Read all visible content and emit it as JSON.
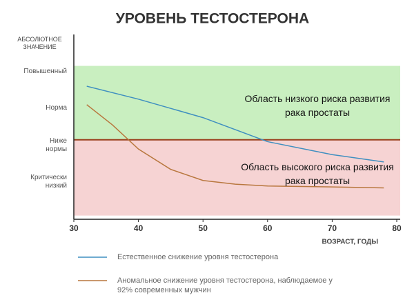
{
  "chart_data": {
    "type": "line",
    "title": "УРОВЕНЬ ТЕСТОСТЕРОНА",
    "y_label": "АБСОЛЮТНОЕ ЗНАЧЕНИЕ",
    "x_label": "ВОЗРАСТ, ГОДЫ",
    "xlim": [
      30,
      80
    ],
    "xticks": [
      30,
      40,
      50,
      60,
      70,
      80
    ],
    "ylim": [
      0,
      100
    ],
    "yticks": [
      {
        "value": 80,
        "label": "Повышенный"
      },
      {
        "value": 60,
        "label": "Норма"
      },
      {
        "value": 40,
        "label": "Ниже нормы"
      },
      {
        "value": 20,
        "label": "Критически низкий"
      }
    ],
    "threshold": {
      "value": 43,
      "color": "#9a3f1c"
    },
    "zones": [
      {
        "range": [
          43,
          83
        ],
        "color": "#c9efc0"
      },
      {
        "range": [
          2,
          43
        ],
        "color": "#f6d3d3"
      }
    ],
    "annotations": [
      "Область низкого риска развития рака простаты",
      "Область высокого риска развития рака простаты"
    ],
    "series": [
      {
        "name": "Естественное снижение уровня тестостерона",
        "color": "#3f8fc0",
        "x": [
          32,
          40,
          50,
          60,
          70,
          78
        ],
        "values": [
          72,
          65,
          55,
          42,
          35,
          31
        ]
      },
      {
        "name": "Аномальное снижение уровня тестостерона, наблюдаемое у 92% современных мужчин",
        "color": "#b8773e",
        "x": [
          32,
          36,
          40,
          45,
          50,
          55,
          60,
          70,
          78
        ],
        "values": [
          62,
          51,
          38,
          27,
          21,
          19,
          18,
          17.5,
          17
        ]
      }
    ]
  }
}
